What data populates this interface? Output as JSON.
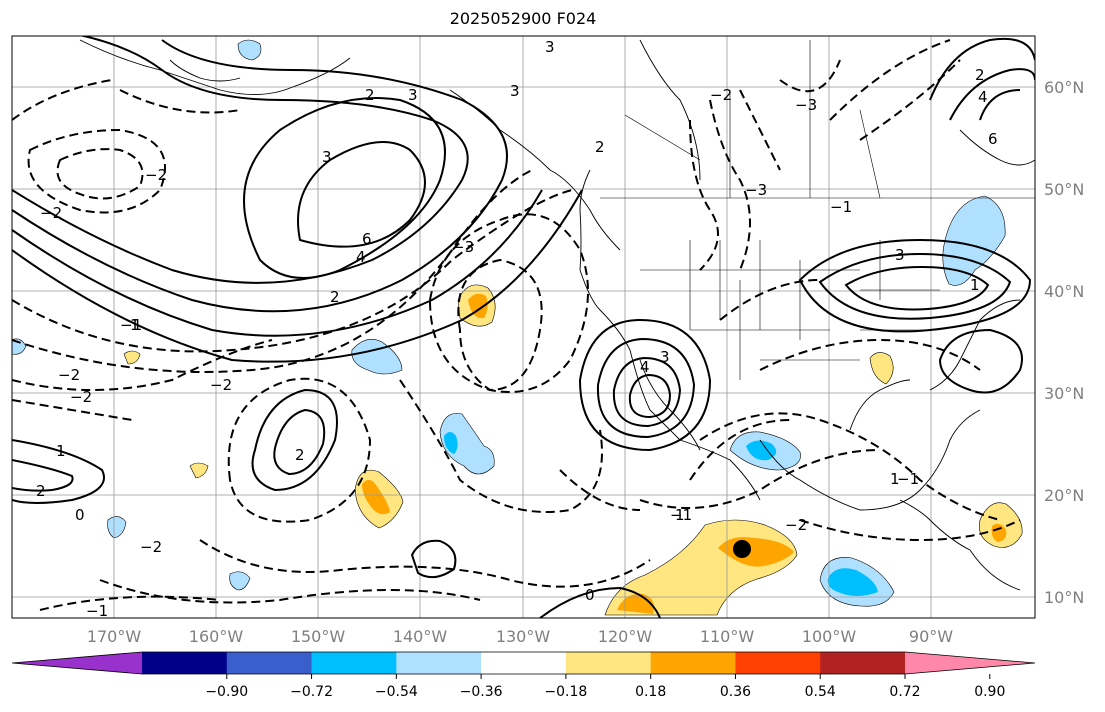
{
  "title": "2025052900 F024",
  "lat_labels": [
    "60°N",
    "50°N",
    "40°N",
    "30°N",
    "20°N",
    "10°N"
  ],
  "lon_labels": [
    "170°W",
    "160°W",
    "150°W",
    "140°W",
    "130°W",
    "120°W",
    "110°W",
    "100°W",
    "90°W"
  ],
  "colorbar": {
    "ticks": [
      "−0.90",
      "−0.72",
      "−0.54",
      "−0.36",
      "−0.18",
      "0.18",
      "0.36",
      "0.54",
      "0.72",
      "0.90"
    ],
    "colors": [
      "#9932cc",
      "#00008b",
      "#3a5fcd",
      "#00bfff",
      "#b0e0ff",
      "#ffffff",
      "#ffe680",
      "#ffa500",
      "#ff4000",
      "#b22222",
      "#ff88aa"
    ]
  },
  "contour_labels": {
    "pos": [
      "1",
      "2",
      "3",
      "4",
      "6",
      "3",
      "2",
      "3",
      "4",
      "3",
      "2",
      "1",
      "2",
      "4",
      "6",
      "3",
      "2",
      "0",
      "1",
      "2",
      "3",
      "1",
      "1",
      "0"
    ],
    "neg": [
      "−1",
      "−2",
      "−3",
      "−2",
      "−1",
      "−2",
      "−2",
      "−3",
      "−1",
      "−2",
      "−1",
      "−2",
      "−1",
      "−2",
      "−3",
      "−2"
    ]
  },
  "storm_marker": "storm-center-marker"
}
